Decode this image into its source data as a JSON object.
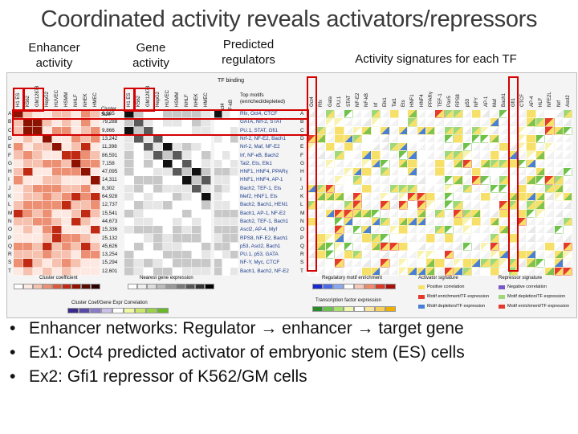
{
  "title": "Coordinated activity reveals activators/repressors",
  "headers": {
    "enhancer": "Enhancer activity",
    "gene": "Gene activity",
    "regulators": "Predicted regulators",
    "signatures": "Activity signatures for each TF"
  },
  "figure": {
    "cell_lines": [
      "H1 ES",
      "K562",
      "GM12878",
      "HepG2",
      "HUVEC",
      "HSMM",
      "NHLF",
      "NHEK",
      "HMEC"
    ],
    "cluster_size_label": "Cluster Size",
    "tf_binding_label": "TF binding",
    "top_motifs_label": "Top motifs (enriched/depleted)",
    "tf_headers": [
      "Oct4",
      "NF-kB"
    ],
    "tf_columns": [
      "Oct4",
      "Rfx",
      "Gata",
      "PU.1",
      "STAT",
      "NF-E2",
      "NF-kB",
      "Irf",
      "Elk1",
      "Tal1",
      "Ets",
      "HNF1",
      "HNF4",
      "PPARγ",
      "TEF-1",
      "Pax5",
      "RPS8",
      "p53",
      "NFY",
      "AP-1",
      "Maf",
      "Bach1",
      "Gfi1",
      "CTCF",
      "AP-4",
      "HLF",
      "NFE2L",
      "Nrf",
      "Ascl2"
    ],
    "row_letters": [
      "A",
      "B",
      "C",
      "D",
      "E",
      "F",
      "G",
      "H",
      "I",
      "J",
      "K",
      "L",
      "M",
      "N",
      "O",
      "P",
      "Q",
      "R",
      "S",
      "T"
    ],
    "cluster_sizes": [
      "6,965",
      "79,288",
      "9,866",
      "13,242",
      "11,398",
      "86,591",
      "7,158",
      "47,095",
      "14,311",
      "8,302",
      "64,928",
      "12,737",
      "15,541",
      "44,673",
      "15,336",
      "25,132",
      "45,626",
      "13,254",
      "15,294",
      "12,601"
    ],
    "motifs": [
      "Rfx, Oct4, CTCF",
      "GATA, Nrf-2, STAT",
      "PU.1, STAT, Gfi1",
      "Nrf-2, NF-E2, Bach1",
      "Nrf-2, Maf, NF-E2",
      "Irf, NF-κB, Bach2",
      "Tal2, Ets, Elk1",
      "HNF1, HNF4, PPARγ",
      "HNF1, HNF4, AP-1",
      "Bach2, TEF-1, Ets",
      "Mef2, HNF1, Ets",
      "Bach2, Bach1, HEN1",
      "Bach1, AP-1, NF-E2",
      "Bach2, TEF-1, Bach1",
      "Ascl2, AP-4, Myf",
      "RPS8, NF-E2, Bach1",
      "p53, Ascl2, Bach1",
      "PU.1, p53, GATA",
      "NF-Y, Myc, CTCF",
      "Bach1, Bach2, NF-E2"
    ],
    "cluster_coeff_label": "Cluster coefficient",
    "nearest_gene_label": "Nearest gene expression",
    "correlation_label": "Cluster Coef/Gene Expr Correlation",
    "regulatory_motif_label": "Regulatory motif enrichment",
    "tf_expression_label": "Transcription factor expression",
    "activator_label": "Activator signature",
    "repressor_label": "Repressor signature",
    "activator_items": [
      "Positive correlation",
      "Motif enrichment/TF expression",
      "Motif depletion/TF expression"
    ],
    "repressor_items": [
      "Negative correlation",
      "Motif depletion/TF expression",
      "Motif enrichment/TF expression"
    ]
  },
  "bullets": [
    "Enhancer networks: Regulator → enhancer → target gene",
    "Ex1: Oct4 predicted activator of embryonic stem (ES) cells",
    "Ex2: Gfi1 repressor of K562/GM cells"
  ]
}
